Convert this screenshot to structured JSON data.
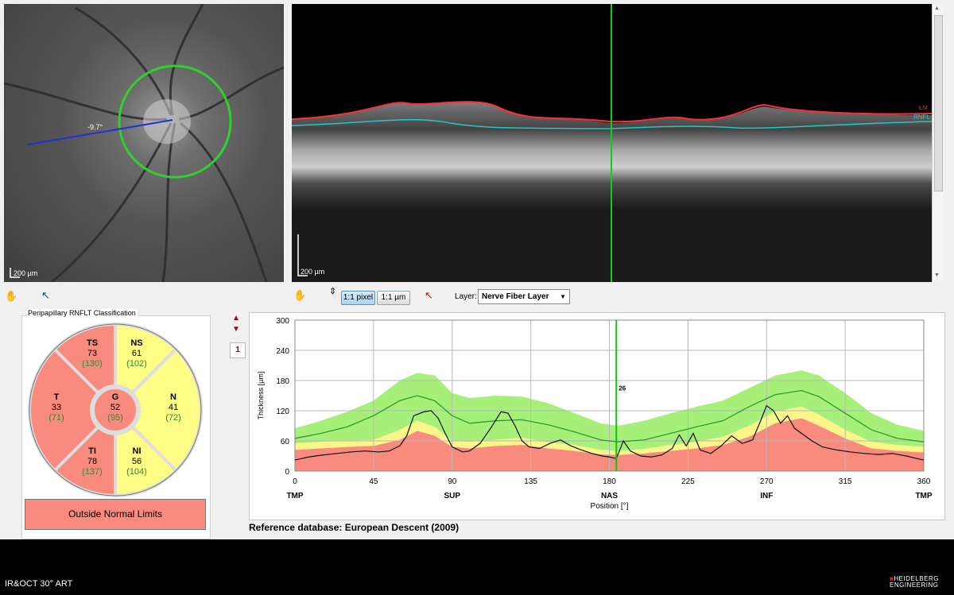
{
  "fundus": {
    "scale_label": "200 µm",
    "distance_label": "-9.7°"
  },
  "oct": {
    "scale_label": "200 µm",
    "layer_tags": [
      "ILM",
      "RNFL"
    ]
  },
  "toolbar": {
    "pixel_button": "1:1 pixel",
    "micron_button": "1:1 µm",
    "layer_label": "Layer:",
    "layer_value": "Nerve Fiber Layer"
  },
  "classification": {
    "title": "Peripapillary RNFLT Classification",
    "sectors": [
      {
        "id": "TS",
        "name": "TS",
        "value": "73",
        "normal": "(130)",
        "status": "outside"
      },
      {
        "id": "NS",
        "name": "NS",
        "value": "61",
        "normal": "(102)",
        "status": "borderline"
      },
      {
        "id": "T",
        "name": "T",
        "value": "33",
        "normal": "(71)",
        "status": "outside"
      },
      {
        "id": "G",
        "name": "G",
        "value": "52",
        "normal": "(95)",
        "status": "outside"
      },
      {
        "id": "N",
        "name": "N",
        "value": "41",
        "normal": "(72)",
        "status": "borderline"
      },
      {
        "id": "TI",
        "name": "TI",
        "value": "78",
        "normal": "(137)",
        "status": "outside"
      },
      {
        "id": "NI",
        "name": "NI",
        "value": "56",
        "normal": "(104)",
        "status": "borderline"
      }
    ],
    "result": "Outside Normal Limits",
    "colors": {
      "outside": "#f98a7e",
      "borderline": "#fdfd86",
      "normal_value": "#2e8b2e"
    }
  },
  "graph": {
    "page_number": "1",
    "reference": "Reference database: European Descent (2009)",
    "cursor_label": "26"
  },
  "chart_data": {
    "type": "line",
    "xlabel": "Position [°]",
    "ylabel": "Thickness [µm]",
    "xlim": [
      0,
      360
    ],
    "ylim": [
      0,
      300
    ],
    "xticks": [
      0,
      45,
      90,
      135,
      180,
      225,
      270,
      315,
      360
    ],
    "yticks": [
      0,
      60,
      120,
      180,
      240,
      300
    ],
    "sector_labels": [
      {
        "x": 0,
        "label": "TMP"
      },
      {
        "x": 90,
        "label": "SUP"
      },
      {
        "x": 180,
        "label": "NAS"
      },
      {
        "x": 270,
        "label": "INF"
      },
      {
        "x": 360,
        "label": "TMP"
      }
    ],
    "cursor_x": 184,
    "grid": true,
    "bands": {
      "x": [
        0,
        15,
        30,
        45,
        60,
        70,
        80,
        90,
        100,
        115,
        130,
        145,
        160,
        175,
        185,
        200,
        215,
        230,
        245,
        260,
        275,
        290,
        300,
        315,
        330,
        345,
        360
      ],
      "red_upper": [
        42,
        45,
        48,
        50,
        62,
        80,
        70,
        48,
        45,
        50,
        52,
        45,
        40,
        33,
        32,
        35,
        40,
        45,
        52,
        68,
        95,
        105,
        90,
        65,
        45,
        40,
        37
      ],
      "yellow_upper": [
        55,
        58,
        60,
        62,
        82,
        100,
        88,
        60,
        58,
        62,
        66,
        57,
        52,
        42,
        40,
        44,
        52,
        58,
        68,
        90,
        118,
        128,
        112,
        82,
        58,
        52,
        48
      ],
      "green_upper": [
        85,
        100,
        118,
        140,
        180,
        195,
        190,
        155,
        145,
        150,
        148,
        135,
        115,
        95,
        90,
        100,
        115,
        128,
        140,
        165,
        190,
        200,
        190,
        155,
        115,
        92,
        80
      ],
      "mean": [
        65,
        75,
        88,
        110,
        140,
        150,
        140,
        110,
        95,
        100,
        102,
        92,
        78,
        62,
        58,
        62,
        75,
        88,
        100,
        128,
        152,
        160,
        148,
        115,
        82,
        65,
        58
      ]
    },
    "series": [
      {
        "values_x": [
          0,
          8,
          16,
          24,
          32,
          40,
          48,
          54,
          60,
          64,
          68,
          74,
          78,
          82,
          86,
          90,
          96,
          100,
          106,
          112,
          118,
          122,
          126,
          130,
          134,
          140,
          146,
          152,
          158,
          164,
          170,
          176,
          180,
          184,
          188,
          192,
          198,
          204,
          210,
          216,
          220,
          224,
          228,
          232,
          238,
          244,
          250,
          256,
          262,
          266,
          270,
          274,
          278,
          282,
          286,
          290,
          296,
          302,
          310,
          318,
          326,
          334,
          342,
          350,
          356,
          360
        ],
        "values_y": [
          22,
          28,
          32,
          35,
          38,
          40,
          38,
          40,
          50,
          70,
          110,
          118,
          120,
          105,
          75,
          48,
          38,
          40,
          55,
          85,
          118,
          115,
          90,
          60,
          48,
          45,
          55,
          62,
          50,
          42,
          35,
          30,
          28,
          25,
          60,
          40,
          30,
          28,
          32,
          45,
          72,
          50,
          75,
          42,
          35,
          50,
          70,
          55,
          62,
          95,
          130,
          120,
          95,
          110,
          85,
          75,
          60,
          48,
          42,
          38,
          35,
          33,
          35,
          30,
          25,
          22
        ]
      }
    ]
  }
}
